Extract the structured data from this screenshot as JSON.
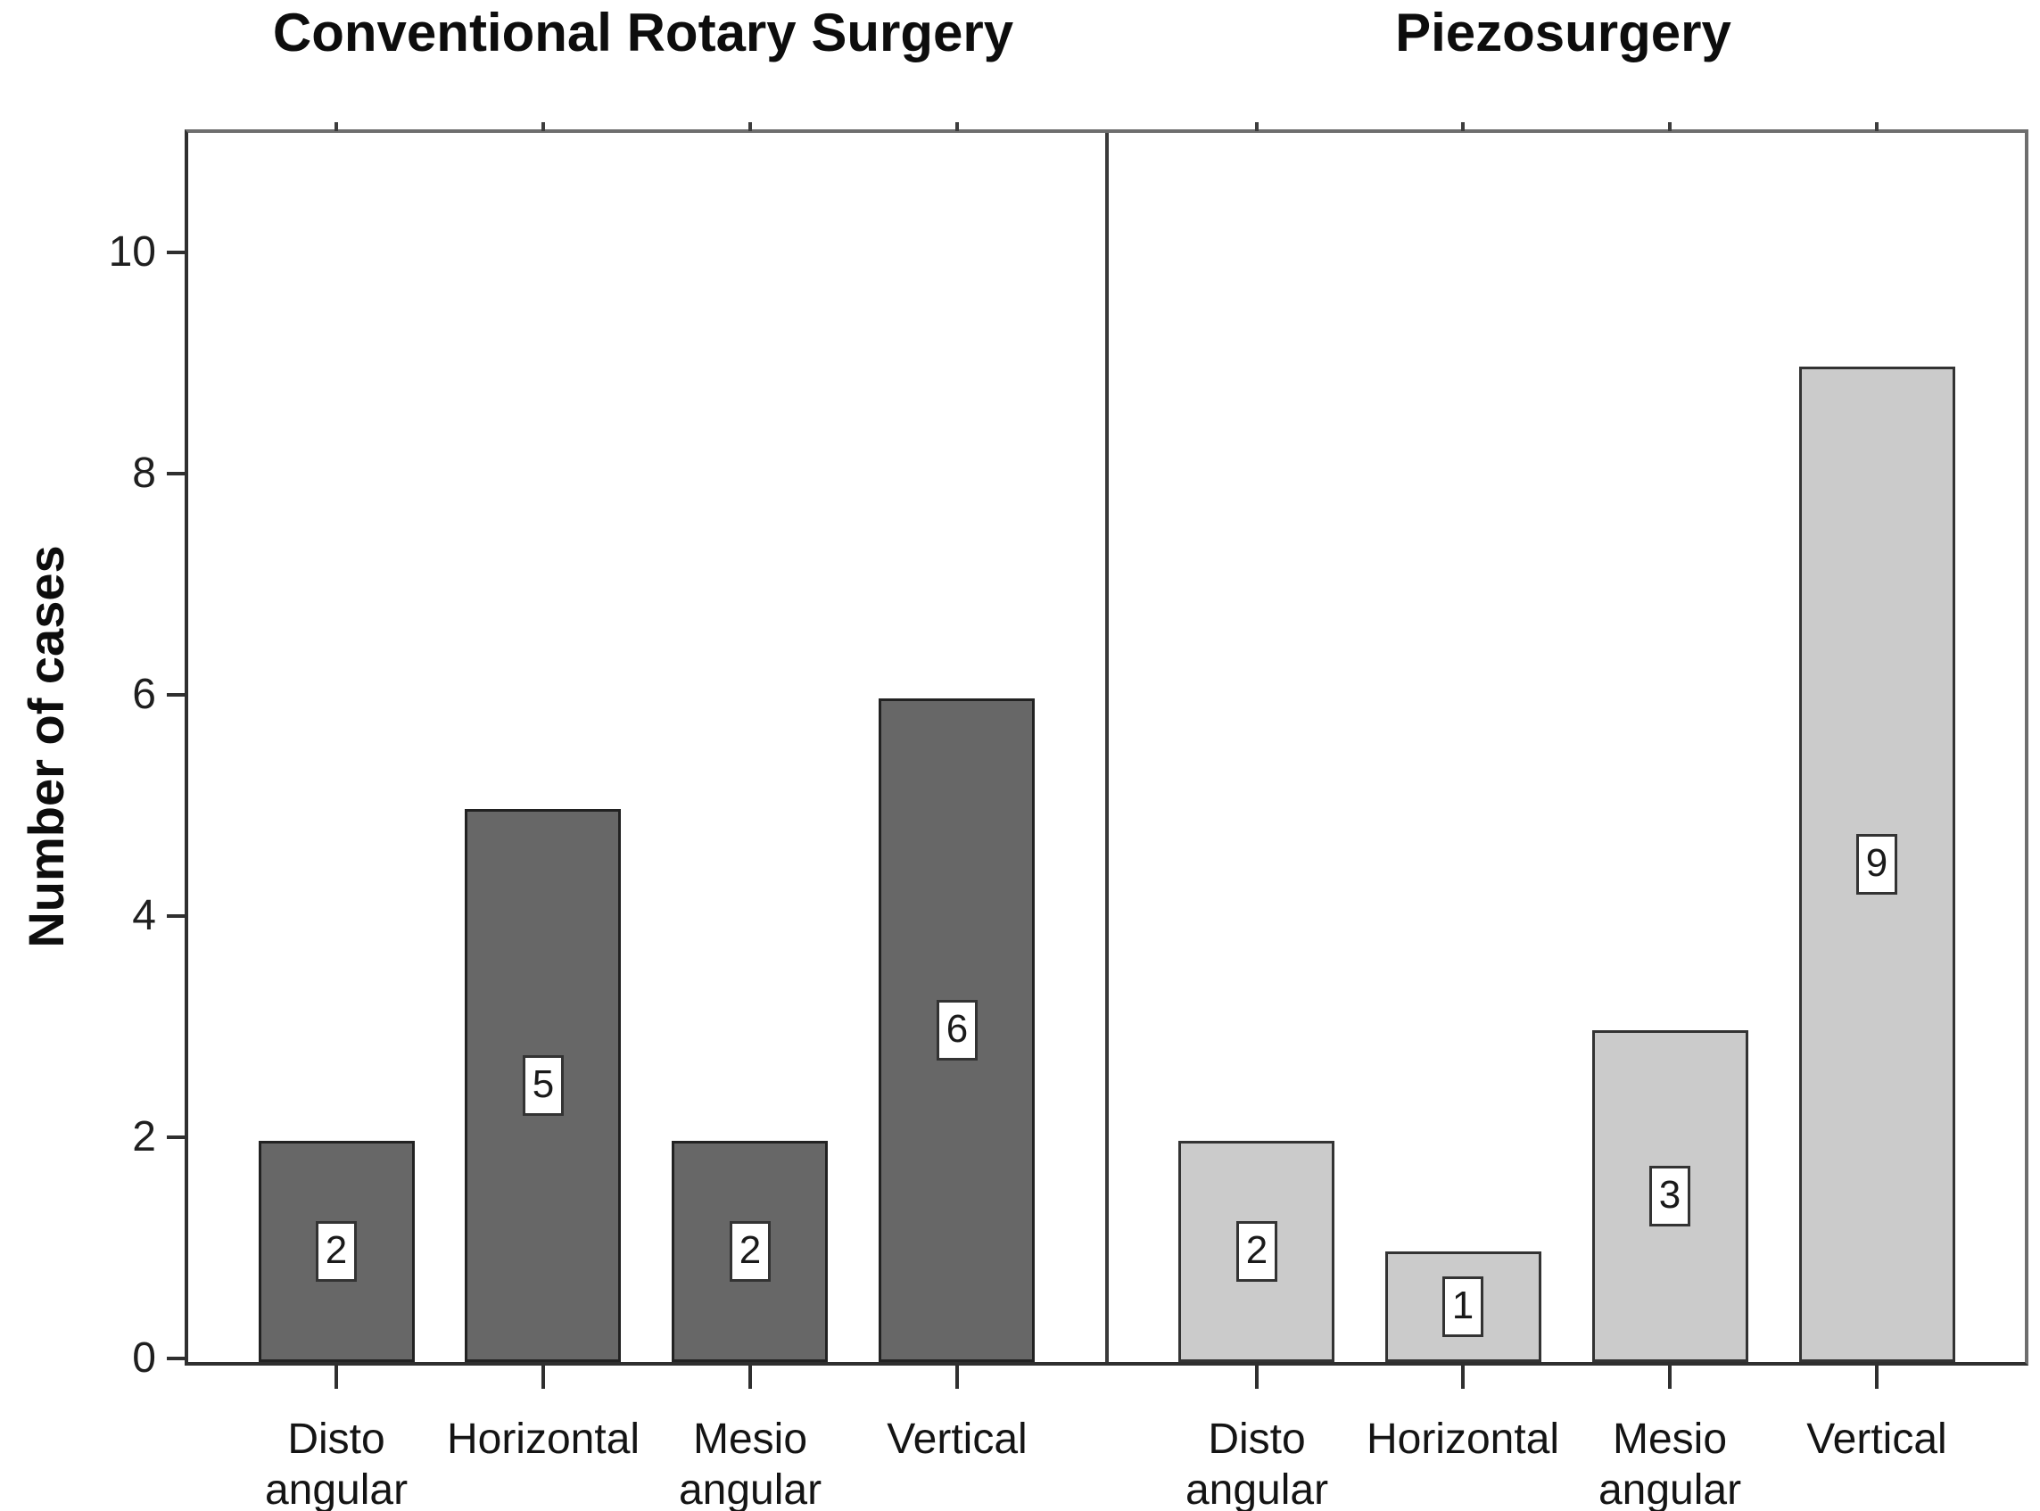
{
  "chart_data": {
    "type": "bar",
    "ylabel": "Number of cases",
    "xlabel": "",
    "yticks": [
      0,
      2,
      4,
      6,
      8,
      10
    ],
    "ylim": [
      0,
      11.1
    ],
    "grid": false,
    "legend": "none",
    "categories": [
      "Disto angular",
      "Horizontal",
      "Mesio angular",
      "Vertical"
    ],
    "categories_display": [
      [
        "Disto",
        "angular"
      ],
      [
        "Horizontal"
      ],
      [
        "Mesio",
        "angular"
      ],
      [
        "Vertical"
      ]
    ],
    "series": [
      {
        "name": "Conventional Rotary Surgery",
        "values": [
          2,
          5,
          2,
          6
        ]
      },
      {
        "name": "Piezosurgery",
        "values": [
          2,
          1,
          3,
          9
        ]
      }
    ],
    "panels": [
      {
        "title": "Conventional Rotary Surgery",
        "values": [
          2,
          5,
          2,
          6
        ],
        "bar_value_labels": [
          "2",
          "5",
          "2",
          "6"
        ],
        "bar_fill": "#676767",
        "bar_border": "#222222"
      },
      {
        "title": "Piezosurgery",
        "values": [
          2,
          1,
          3,
          9
        ],
        "bar_value_labels": [
          "2",
          "1",
          "3",
          "9"
        ],
        "bar_fill": "#cbcbcb",
        "bar_border": "#333333"
      }
    ]
  },
  "colors": {
    "background": "#ffffff",
    "frame_top_right": "#6e6e6e",
    "frame_left_bottom": "#2f2f2f",
    "panel_divider": "#3a3a3a",
    "value_box_bg": "#ffffff",
    "value_box_border": "#333333",
    "text": "#1a1a1a"
  }
}
